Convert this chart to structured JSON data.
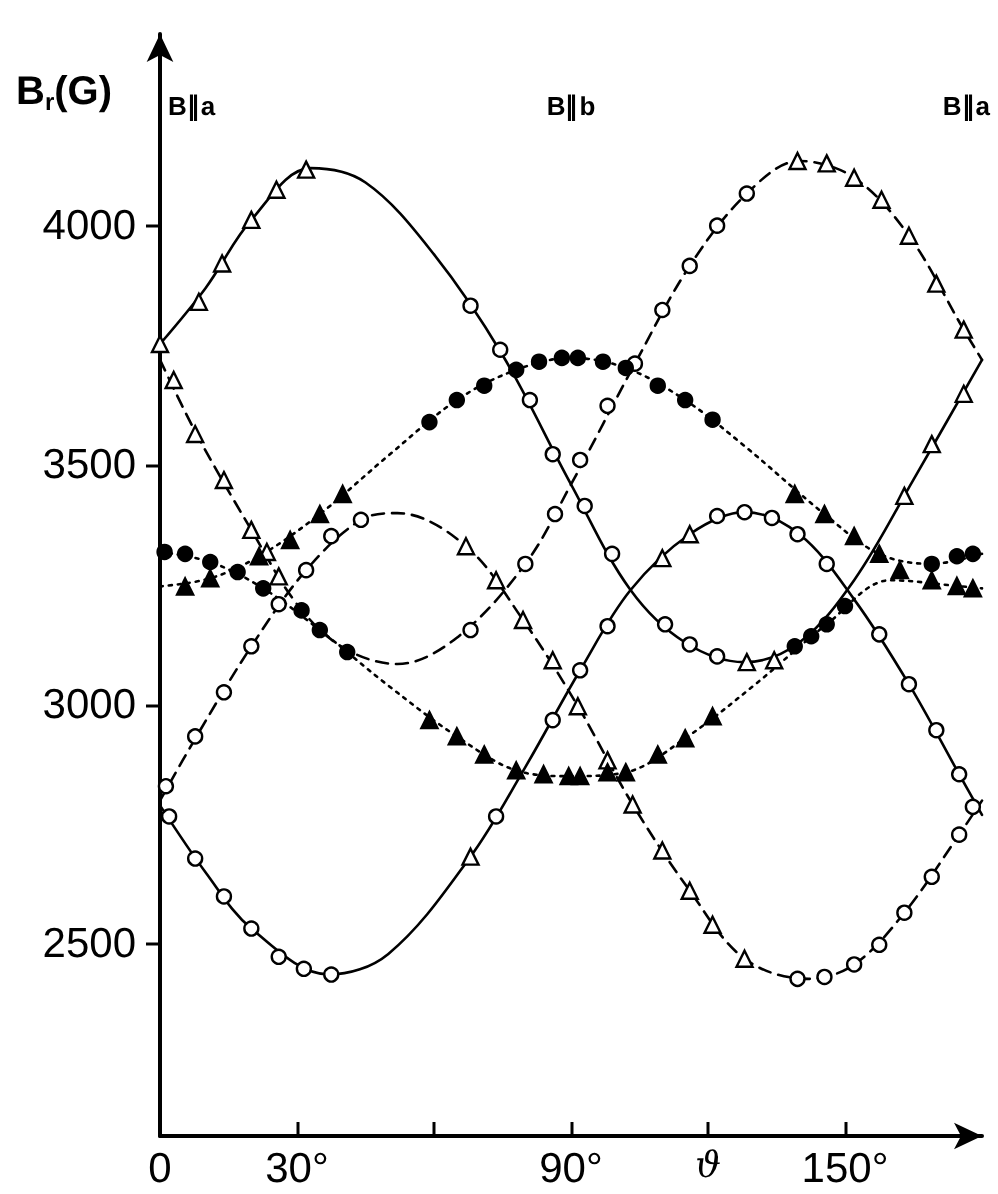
{
  "chart_data": {
    "type": "line",
    "xlabel": "ϑ",
    "ylabel": "B$_{r}$(G)",
    "annotations": [
      "B∥a",
      "B∥b",
      "B∥a"
    ],
    "xlim": [
      0,
      180
    ],
    "ylim": [
      2100,
      4400
    ],
    "xticks": [
      {
        "value": 0,
        "label": "0"
      },
      {
        "value": 30,
        "label": "30°"
      },
      {
        "value": 60,
        "label": null
      },
      {
        "value": 90,
        "label": "90°"
      },
      {
        "value": 120,
        "label": null
      },
      {
        "value": 150,
        "label": "150°"
      }
    ],
    "yticks": [
      2500,
      3000,
      3500,
      4000
    ],
    "grid": false,
    "series": [
      {
        "line_style": "solid",
        "marker": "none",
        "color": "#000000",
        "x": [
          0,
          10,
          20,
          33,
          45,
          60,
          75,
          90,
          103,
          115,
          128,
          140,
          152,
          165,
          180
        ],
        "values": [
          3753,
          3870,
          4012,
          4120,
          4090,
          3940,
          3730,
          3460,
          3240,
          3130,
          3089,
          3130,
          3260,
          3470,
          3720
        ]
      },
      {
        "line_style": "solid",
        "marker": "none",
        "color": "#000000",
        "x": [
          0,
          10,
          20,
          37,
          50,
          68,
          80,
          92,
          103,
          116,
          128,
          140,
          152,
          164,
          175,
          180
        ],
        "values": [
          2790,
          2650,
          2533,
          2437,
          2480,
          2683,
          2870,
          3072,
          3239,
          3356,
          3402,
          3356,
          3220,
          3043,
          2855,
          2770
        ]
      },
      {
        "line_style": "dashed",
        "marker": "none",
        "color": "#000000",
        "x": [
          0,
          8,
          20,
          30,
          40,
          52,
          65,
          80,
          90,
          104,
          116,
          128.5,
          140,
          152,
          164,
          176,
          180
        ],
        "values": [
          3720,
          3565,
          3365,
          3210,
          3120,
          3085,
          3140,
          3294,
          3460,
          3712,
          3916,
          4067,
          4135,
          4100,
          3979,
          3783,
          3720
        ]
      },
      {
        "line_style": "dashed",
        "marker": "none",
        "color": "#000000",
        "x": [
          0,
          8,
          20,
          32,
          44,
          52,
          67,
          79.5,
          91.5,
          103.5,
          116,
          128,
          142,
          152,
          163,
          175,
          180
        ],
        "values": [
          2800,
          2934,
          3122,
          3281,
          3386,
          3400,
          3331,
          3177,
          2997,
          2792,
          2612,
          2470,
          2428,
          2458,
          2566,
          2729,
          2800
        ]
      },
      {
        "line_style": "dotted",
        "marker": "none",
        "color": "#000000",
        "x": [
          0,
          11,
          21.7,
          35,
          50,
          65,
          78,
          90,
          102,
          115,
          128,
          145.5,
          157.5,
          169,
          180
        ],
        "values": [
          3247,
          3264,
          3310,
          3398,
          3520,
          3636,
          3699,
          3724,
          3703,
          3636,
          3540,
          3398,
          3315,
          3294,
          3315
        ]
      },
      {
        "line_style": "dotted",
        "marker": "none",
        "color": "#000000",
        "x": [
          0,
          11,
          22.6,
          35,
          50,
          65,
          78,
          90,
          102,
          115,
          130,
          146,
          160,
          174.5,
          180
        ],
        "values": [
          3319,
          3298,
          3243,
          3156,
          3040,
          2934,
          2863,
          2851,
          2859,
          2930,
          3040,
          3168,
          3260,
          3248,
          3243
        ]
      },
      {
        "type": "scatter",
        "marker": "circle",
        "color": "#ffffff",
        "x": [
          68,
          74.5,
          81,
          86,
          93,
          99,
          110.6,
          116,
          122,
          68,
          80,
          86.5,
          92,
          98,
          104,
          110,
          116,
          122,
          128.5,
          1.3,
          7.7,
          14,
          20,
          26,
          32,
          37.5,
          44,
          139.6,
          145.5,
          152,
          157.5,
          163,
          169,
          175,
          2,
          7.7,
          14,
          20,
          26,
          31.5,
          37.5,
          73.6,
          86,
          92,
          98,
          122,
          128,
          134,
          139.6,
          146,
          157.5,
          164,
          170,
          175,
          178
        ],
        "values": [
          3833,
          3741,
          3636,
          3523,
          3415,
          3315,
          3168,
          3126,
          3101,
          3156,
          3294,
          3398,
          3511,
          3624,
          3712,
          3824,
          3916,
          4000,
          4067,
          2830,
          2934,
          3026,
          3122,
          3210,
          3281,
          3352,
          3386,
          2428,
          2432,
          2458,
          2499,
          2566,
          2641,
          2729,
          2767,
          2679,
          2600,
          2533,
          2474,
          2449,
          2437,
          2767,
          2968,
          3072,
          3164,
          3394,
          3402,
          3390,
          3356,
          3294,
          3147,
          3043,
          2947,
          2855,
          2787
        ]
      },
      {
        "type": "scatter",
        "marker": "triangle",
        "color": "#ffffff",
        "x": [
          0,
          8.5,
          13.6,
          20,
          25.5,
          32,
          128.5,
          134.5,
          163,
          169,
          176,
          3,
          7.7,
          14,
          20,
          23.4,
          26,
          139.6,
          146,
          152,
          158,
          164,
          170,
          176,
          67,
          73.6,
          79.5,
          86,
          91.5,
          98,
          103.5,
          110,
          116,
          121,
          128,
          68,
          110,
          116
        ],
        "values": [
          3753,
          3841,
          3921,
          4012,
          4075,
          4117,
          3089,
          3093,
          3436,
          3544,
          3649,
          3678,
          3565,
          3469,
          3365,
          3319,
          3268,
          4135,
          4130,
          4100,
          4054,
          3979,
          3879,
          3783,
          3331,
          3260,
          3177,
          3093,
          2997,
          2884,
          2792,
          2696,
          2612,
          2541,
          2470,
          2683,
          3306,
          3356
        ]
      },
      {
        "type": "scatter",
        "marker": "circle",
        "color": "#000000",
        "x": [
          59,
          65,
          71,
          78,
          83,
          88,
          91.5,
          97,
          102,
          109,
          115,
          121,
          169,
          174.5,
          178,
          1,
          5.5,
          11,
          17,
          22.6,
          31,
          35,
          41,
          139,
          142.6,
          146,
          150
        ],
        "values": [
          3590,
          3636,
          3666,
          3699,
          3716,
          3724,
          3724,
          3716,
          3703,
          3666,
          3636,
          3595,
          3294,
          3310,
          3315,
          3319,
          3315,
          3298,
          3277,
          3243,
          3197,
          3156,
          3110,
          3122,
          3143,
          3168,
          3206
        ]
      },
      {
        "type": "scatter",
        "marker": "triangle",
        "color": "#000000",
        "x": [
          5.5,
          11,
          21.7,
          28.5,
          35,
          40,
          139,
          145.5,
          152,
          157.5,
          59,
          65,
          71,
          78,
          84,
          89.5,
          92,
          98,
          102,
          109,
          115,
          121,
          162,
          169,
          174.5,
          178
        ],
        "values": [
          3247,
          3264,
          3310,
          3344,
          3398,
          3440,
          3440,
          3398,
          3352,
          3315,
          2968,
          2934,
          2896,
          2863,
          2855,
          2851,
          2851,
          2859,
          2859,
          2896,
          2930,
          2976,
          3281,
          3260,
          3248,
          3243
        ]
      }
    ]
  }
}
